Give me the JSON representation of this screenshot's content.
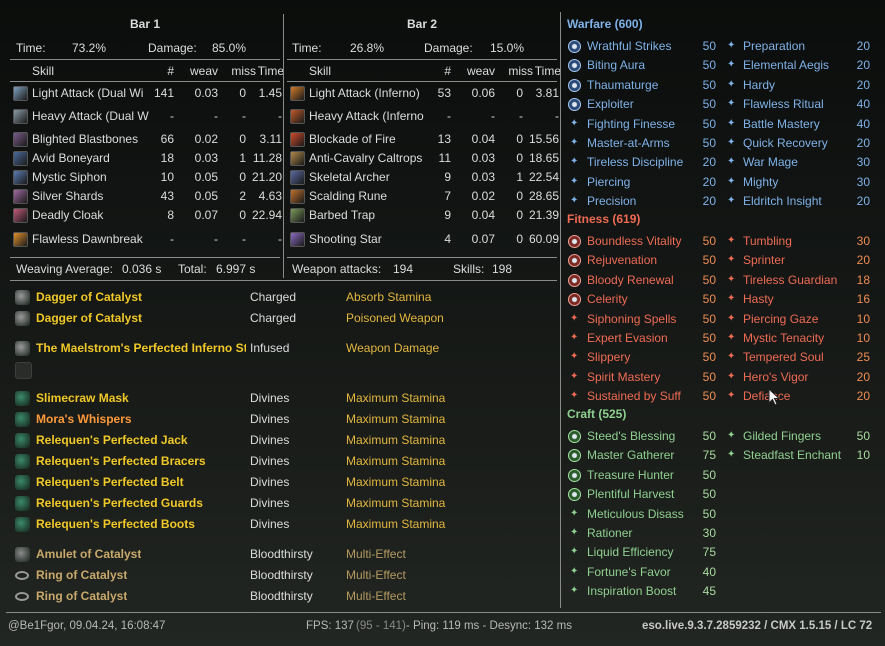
{
  "bar1": {
    "title": "Bar 1",
    "time_label": "Time:",
    "time_value": "73.2%",
    "damage_label": "Damage:",
    "damage_value": "85.0%",
    "columns": [
      "Skill",
      "#",
      "weav",
      "miss",
      "Time"
    ],
    "rows": [
      {
        "skill": "Light Attack (Dual Wi",
        "count": "141",
        "weav": "0.03",
        "miss": "0",
        "time": "1.45",
        "icon": "dual-wield-light-attack-icon",
        "color": "#7fa0c0"
      },
      {
        "skill": "Heavy Attack (Dual W",
        "count": "-",
        "weav": "-",
        "miss": "-",
        "time": "-",
        "icon": "dual-wield-heavy-attack-icon",
        "color": "#8a9aa8"
      },
      {
        "skill": "Blighted Blastbones",
        "count": "66",
        "weav": "0.02",
        "miss": "0",
        "time": "3.11",
        "icon": "blastbones-icon",
        "color": "#7a5a8a"
      },
      {
        "skill": "Avid Boneyard",
        "count": "18",
        "weav": "0.03",
        "miss": "1",
        "time": "11.28",
        "icon": "boneyard-icon",
        "color": "#4a6a9a"
      },
      {
        "skill": "Mystic Siphon",
        "count": "10",
        "weav": "0.05",
        "miss": "0",
        "time": "21.20",
        "icon": "mystic-siphon-icon",
        "color": "#5a7ab0"
      },
      {
        "skill": "Silver Shards",
        "count": "43",
        "weav": "0.05",
        "miss": "2",
        "time": "4.63",
        "icon": "silver-shards-icon",
        "color": "#a06aa0"
      },
      {
        "skill": "Deadly Cloak",
        "count": "8",
        "weav": "0.07",
        "miss": "0",
        "time": "22.94",
        "icon": "deadly-cloak-icon",
        "color": "#c05a7a"
      },
      {
        "skill": "Flawless Dawnbreak",
        "count": "-",
        "weav": "-",
        "miss": "-",
        "time": "-",
        "icon": "dawnbreak-icon",
        "color": "#e0902a"
      }
    ],
    "weaving_label": "Weaving Average:",
    "weaving_value": "0.036 s",
    "total_label": "Total:",
    "total_value": "6.997 s"
  },
  "bar2": {
    "title": "Bar 2",
    "time_label": "Time:",
    "time_value": "26.8%",
    "damage_label": "Damage:",
    "damage_value": "15.0%",
    "columns": [
      "Skill",
      "#",
      "weav",
      "miss",
      "Time"
    ],
    "rows": [
      {
        "skill": "Light Attack (Inferno)",
        "count": "53",
        "weav": "0.06",
        "miss": "0",
        "time": "3.81",
        "icon": "inferno-light-attack-icon",
        "color": "#d07a2a"
      },
      {
        "skill": "Heavy Attack (Inferno",
        "count": "-",
        "weav": "-",
        "miss": "-",
        "time": "-",
        "icon": "inferno-heavy-attack-icon",
        "color": "#c05a2a"
      },
      {
        "skill": "Blockade of Fire",
        "count": "13",
        "weav": "0.04",
        "miss": "0",
        "time": "15.56",
        "icon": "blockade-of-fire-icon",
        "color": "#d04a2a"
      },
      {
        "skill": "Anti-Cavalry Caltrops",
        "count": "11",
        "weav": "0.03",
        "miss": "0",
        "time": "18.65",
        "icon": "caltrops-icon",
        "color": "#b08a4a"
      },
      {
        "skill": "Skeletal Archer",
        "count": "9",
        "weav": "0.03",
        "miss": "1",
        "time": "22.54",
        "icon": "skeletal-archer-icon",
        "color": "#5a6aa0"
      },
      {
        "skill": "Scalding Rune",
        "count": "7",
        "weav": "0.02",
        "miss": "0",
        "time": "28.65",
        "icon": "scalding-rune-icon",
        "color": "#c0702a"
      },
      {
        "skill": "Barbed Trap",
        "count": "9",
        "weav": "0.04",
        "miss": "0",
        "time": "21.39",
        "icon": "barbed-trap-icon",
        "color": "#7a9a5a"
      },
      {
        "skill": "Shooting Star",
        "count": "4",
        "weav": "0.07",
        "miss": "0",
        "time": "60.09",
        "icon": "shooting-star-icon",
        "color": "#8a6ac0"
      }
    ],
    "weapon_attacks_label": "Weapon attacks:",
    "weapon_attacks_value": "194",
    "skills_label": "Skills:",
    "skills_value": "198"
  },
  "gear": [
    {
      "name": "Dagger of Catalyst",
      "trait": "Charged",
      "enchant": "Absorb Stamina",
      "style": "gold",
      "icon": "dagger-icon"
    },
    {
      "name": "Dagger of Catalyst",
      "trait": "Charged",
      "enchant": "Poisoned Weapon",
      "style": "gold",
      "icon": "dagger-icon"
    },
    {
      "name": "The Maelstrom's Perfected Inferno Sta",
      "trait": "Infused",
      "enchant": "Weapon Damage",
      "style": "gold",
      "icon": "inferno-staff-icon"
    },
    {
      "name": "",
      "trait": "",
      "enchant": "",
      "style": "empty",
      "icon": "empty-slot-icon"
    },
    {
      "name": "Slimecraw Mask",
      "trait": "Divines",
      "enchant": "Maximum Stamina",
      "style": "gold",
      "icon": "mask-icon"
    },
    {
      "name": "Mora's Whispers",
      "trait": "Divines",
      "enchant": "Maximum Stamina",
      "style": "orange",
      "icon": "shoulders-icon"
    },
    {
      "name": "Relequen's Perfected Jack",
      "trait": "Divines",
      "enchant": "Maximum Stamina",
      "style": "gold",
      "icon": "chest-icon"
    },
    {
      "name": "Relequen's Perfected Bracers",
      "trait": "Divines",
      "enchant": "Maximum Stamina",
      "style": "gold",
      "icon": "gloves-icon"
    },
    {
      "name": "Relequen's Perfected Belt",
      "trait": "Divines",
      "enchant": "Maximum Stamina",
      "style": "gold",
      "icon": "belt-icon"
    },
    {
      "name": "Relequen's Perfected Guards",
      "trait": "Divines",
      "enchant": "Maximum Stamina",
      "style": "gold",
      "icon": "legs-icon"
    },
    {
      "name": "Relequen's Perfected Boots",
      "trait": "Divines",
      "enchant": "Maximum Stamina",
      "style": "gold",
      "icon": "boots-icon"
    },
    {
      "name": "Amulet of Catalyst",
      "trait": "Bloodthirsty",
      "enchant": "Multi-Effect",
      "style": "dimgold",
      "icon": "amulet-icon"
    },
    {
      "name": "Ring of Catalyst",
      "trait": "Bloodthirsty",
      "enchant": "Multi-Effect",
      "style": "dimgold",
      "icon": "ring-icon"
    },
    {
      "name": "Ring of Catalyst",
      "trait": "Bloodthirsty",
      "enchant": "Multi-Effect",
      "style": "dimgold",
      "icon": "ring-icon"
    }
  ],
  "warfare": {
    "title": "Warfare (600)",
    "left": [
      {
        "name": "Wrathful Strikes",
        "pts": "50",
        "slotted": true
      },
      {
        "name": "Biting Aura",
        "pts": "50",
        "slotted": true
      },
      {
        "name": "Thaumaturge",
        "pts": "50",
        "slotted": true
      },
      {
        "name": "Exploiter",
        "pts": "50",
        "slotted": true
      },
      {
        "name": "Fighting Finesse",
        "pts": "50",
        "slotted": false
      },
      {
        "name": "Master-at-Arms",
        "pts": "50",
        "slotted": false
      },
      {
        "name": "Tireless Discipline",
        "pts": "20",
        "slotted": false
      },
      {
        "name": "Piercing",
        "pts": "20",
        "slotted": false
      },
      {
        "name": "Precision",
        "pts": "20",
        "slotted": false
      }
    ],
    "right": [
      {
        "name": "Preparation",
        "pts": "20"
      },
      {
        "name": "Elemental Aegis",
        "pts": "20"
      },
      {
        "name": "Hardy",
        "pts": "20"
      },
      {
        "name": "Flawless Ritual",
        "pts": "40"
      },
      {
        "name": "Battle Mastery",
        "pts": "40"
      },
      {
        "name": "Quick Recovery",
        "pts": "20"
      },
      {
        "name": "War Mage",
        "pts": "30"
      },
      {
        "name": "Mighty",
        "pts": "30"
      },
      {
        "name": "Eldritch Insight",
        "pts": "20"
      }
    ]
  },
  "fitness": {
    "title": "Fitness (619)",
    "left": [
      {
        "name": "Boundless Vitality",
        "pts": "50",
        "slotted": true
      },
      {
        "name": "Rejuvenation",
        "pts": "50",
        "slotted": true
      },
      {
        "name": "Bloody Renewal",
        "pts": "50",
        "slotted": true
      },
      {
        "name": "Celerity",
        "pts": "50",
        "slotted": true
      },
      {
        "name": "Siphoning Spells",
        "pts": "50",
        "slotted": false
      },
      {
        "name": "Expert Evasion",
        "pts": "50",
        "slotted": false
      },
      {
        "name": "Slippery",
        "pts": "50",
        "slotted": false
      },
      {
        "name": "Spirit Mastery",
        "pts": "50",
        "slotted": false
      },
      {
        "name": "Sustained by Suff",
        "pts": "50",
        "slotted": false
      }
    ],
    "right": [
      {
        "name": "Tumbling",
        "pts": "30"
      },
      {
        "name": "Sprinter",
        "pts": "20"
      },
      {
        "name": "Tireless Guardian",
        "pts": "18"
      },
      {
        "name": "Hasty",
        "pts": "16"
      },
      {
        "name": "Piercing Gaze",
        "pts": "10"
      },
      {
        "name": "Mystic Tenacity",
        "pts": "10"
      },
      {
        "name": "Tempered Soul",
        "pts": "25"
      },
      {
        "name": "Hero's Vigor",
        "pts": "20"
      },
      {
        "name": "Defiance",
        "pts": "20"
      }
    ]
  },
  "craft": {
    "title": "Craft (525)",
    "left": [
      {
        "name": "Steed's Blessing",
        "pts": "50",
        "slotted": true
      },
      {
        "name": "Master Gatherer",
        "pts": "75",
        "slotted": true
      },
      {
        "name": "Treasure Hunter",
        "pts": "50",
        "slotted": true
      },
      {
        "name": "Plentiful Harvest",
        "pts": "50",
        "slotted": true
      },
      {
        "name": "Meticulous Disass",
        "pts": "50",
        "slotted": false
      },
      {
        "name": "Rationer",
        "pts": "30",
        "slotted": false
      },
      {
        "name": "Liquid Efficiency",
        "pts": "75",
        "slotted": false
      },
      {
        "name": "Fortune's Favor",
        "pts": "40",
        "slotted": false
      },
      {
        "name": "Inspiration Boost",
        "pts": "45",
        "slotted": false
      }
    ],
    "right": [
      {
        "name": "Gilded Fingers",
        "pts": "50"
      },
      {
        "name": "Steadfast Enchant",
        "pts": "10"
      }
    ]
  },
  "footer": {
    "user": "@Be1Fgor, 09.04.24, 16:08:47",
    "fps_label": "FPS: 137",
    "fps_range": "(95 - 141)",
    "ping": "- Ping: 119 ms - Desync: 132 ms",
    "version": "eso.live.9.3.7.2859232 / CMX 1.5.15 / LC 72"
  },
  "colors": {
    "warfare": "#7fb2e8",
    "fitness": "#ef6b54",
    "craft": "#8fd090",
    "gold": "#f0c828",
    "orange": "#ff9a3a"
  }
}
